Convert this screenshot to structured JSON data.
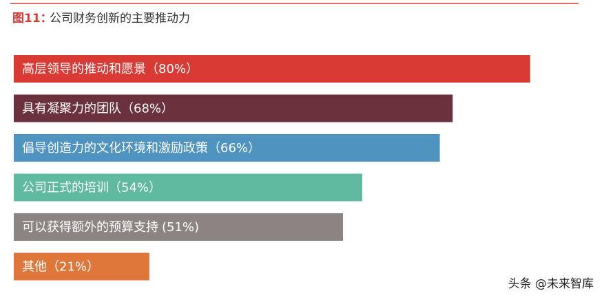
{
  "chart_data": {
    "type": "barh",
    "figure_label": "图11：",
    "title": "公司财务创新的主要推动力",
    "categories": [
      "高层领导的推动和愿景",
      "具有凝聚力的团队",
      "倡导创造力的文化环境和激励政策",
      "公司正式的培训",
      "可以获得额外的预算支持",
      "其他"
    ],
    "values": [
      80,
      68,
      66,
      54,
      51,
      21
    ],
    "value_labels": [
      "（80%）",
      "（68%）",
      "（66%）",
      "（54%）",
      "(51%)",
      "（21%）"
    ],
    "colors": [
      "#d93a33",
      "#6b323d",
      "#4f93c0",
      "#5fbaa0",
      "#8c8483",
      "#e0773a"
    ],
    "xlim": [
      0,
      88
    ],
    "watermark": "头条 @未来智库"
  }
}
